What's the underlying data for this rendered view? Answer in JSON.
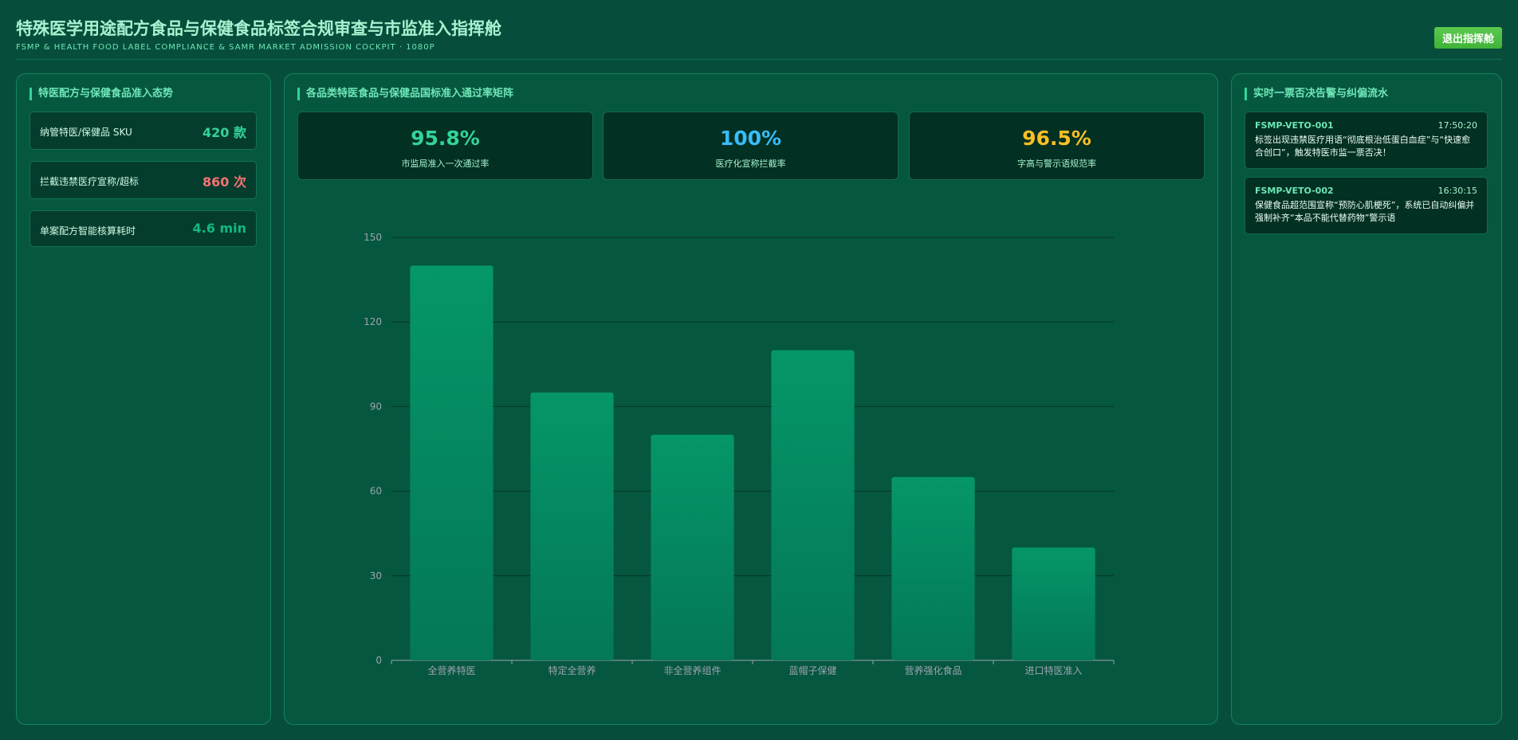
{
  "header": {
    "title": "特殊医学用途配方食品与保健食品标签合规审查与市监准入指挥舱",
    "subtitle": "FSMP & HEALTH FOOD LABEL COMPLIANCE & SAMR MARKET ADMISSION COCKPIT · 1080P",
    "exit_label": "退出指挥舱"
  },
  "left_panel": {
    "title": "特医配方与保健食品准入态势",
    "stats": [
      {
        "label": "纳管特医/保健品 SKU",
        "value": "420 款",
        "color": "#34d399"
      },
      {
        "label": "拦截违禁医疗宣称/超标",
        "value": "860 次",
        "color": "#f87171"
      },
      {
        "label": "单案配方智能核算耗时",
        "value": "4.6 min",
        "color": "#10b981"
      }
    ]
  },
  "center_panel": {
    "title": "各品类特医食品与保健品国标准入通过率矩阵",
    "kpis": [
      {
        "value": "95.8%",
        "label": "市监局准入一次通过率",
        "color": "#34d399"
      },
      {
        "value": "100%",
        "label": "医疗化宣称拦截率",
        "color": "#38bdf8"
      },
      {
        "value": "96.5%",
        "label": "字高与警示语规范率",
        "color": "#fbbf24"
      }
    ]
  },
  "right_panel": {
    "title": "实时一票否决告警与纠偏流水",
    "alerts": [
      {
        "id": "FSMP-VETO-001",
        "time": "17:50:20",
        "text": "标签出现违禁医疗用语“彻底根治低蛋白血症”与“快速愈合创口”，触发特医市监一票否决！"
      },
      {
        "id": "FSMP-VETO-002",
        "time": "16:30:15",
        "text": "保健食品超范围宣称“预防心肌梗死”，系统已自动纠偏并强制补齐“本品不能代替药物”警示语"
      }
    ]
  },
  "chart_data": {
    "type": "bar",
    "categories": [
      "全营养特医",
      "特定全营养",
      "非全营养组件",
      "蓝帽子保健",
      "营养强化食品",
      "进口特医准入"
    ],
    "values": [
      140,
      95,
      80,
      110,
      65,
      40
    ],
    "yticks": [
      0,
      30,
      60,
      90,
      120,
      150
    ],
    "ylim": [
      0,
      150
    ],
    "bar_color_top": "#059669",
    "bar_color_bottom": "#047857",
    "grid": true
  }
}
